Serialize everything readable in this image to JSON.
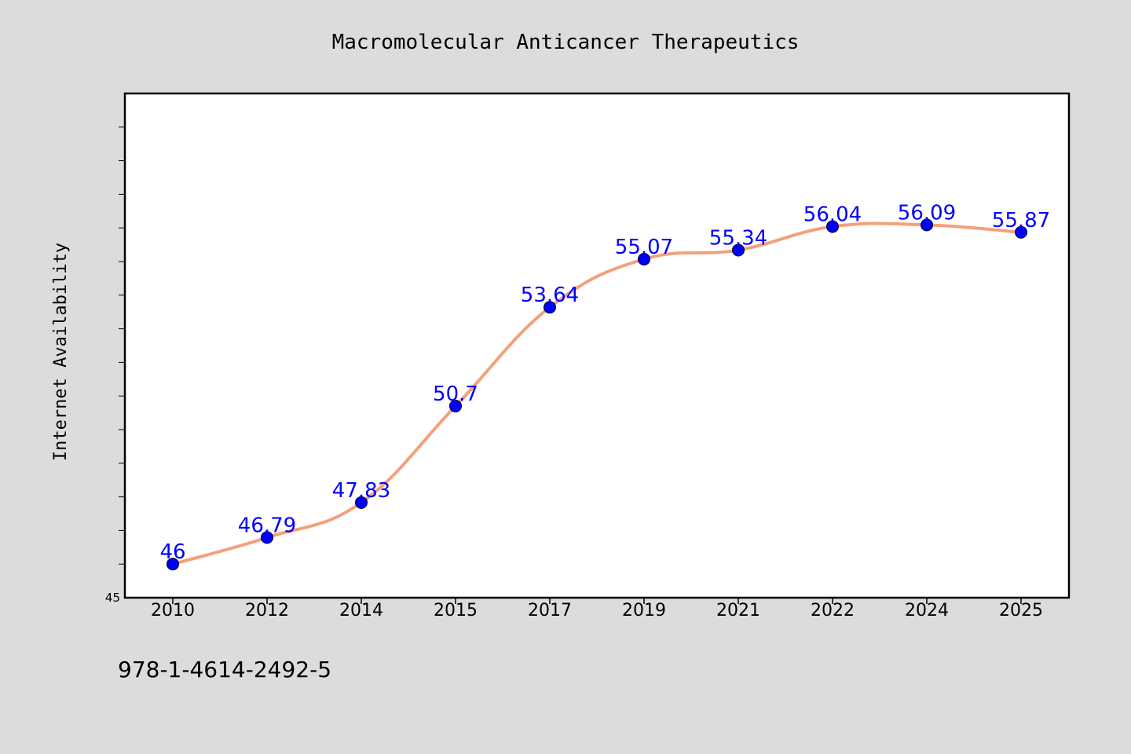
{
  "colors": {
    "background": "#dcdcdc",
    "plot_background": "#ffffff",
    "line": "#f4a07c",
    "marker": "#0000ff",
    "data_label": "#0000ff"
  },
  "footer": {
    "isbn": "978-1-4614-2492-5"
  },
  "chart_data": {
    "type": "line",
    "title": "Macromolecular Anticancer Therapeutics",
    "xlabel": "",
    "ylabel": "Internet Availability",
    "categories": [
      "2010",
      "2012",
      "2014",
      "2015",
      "2017",
      "2019",
      "2021",
      "2022",
      "2024",
      "2025"
    ],
    "series": [
      {
        "values": [
          46,
          46.79,
          47.83,
          50.7,
          53.64,
          55.07,
          55.34,
          56.04,
          56.09,
          55.87
        ],
        "labels": [
          "46",
          "46.79",
          "47.83",
          "50.7",
          "53.64",
          "55.07",
          "55.34",
          "56.04",
          "56.09",
          "55.87"
        ]
      }
    ],
    "ylim": [
      45,
      60
    ],
    "y_tick_label_shown": "45",
    "y_minor_ticks": [
      46,
      47,
      48,
      49,
      50,
      51,
      52,
      53,
      54,
      55,
      56,
      57,
      58,
      59
    ],
    "grid": false,
    "legend": "none",
    "marker": "circle"
  }
}
